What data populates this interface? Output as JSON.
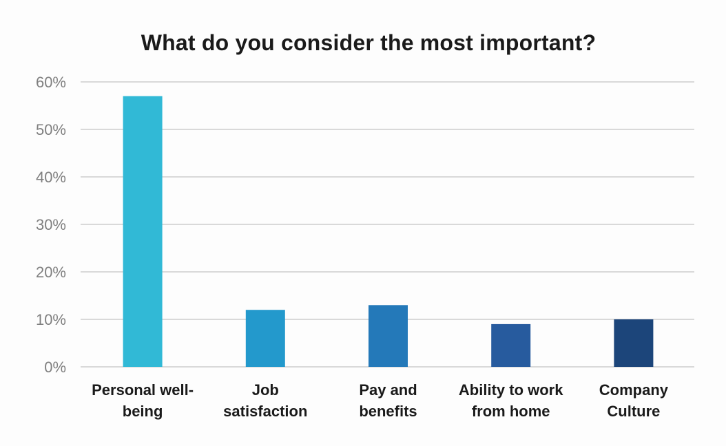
{
  "chart_data": {
    "type": "bar",
    "title": "What do you consider the most important?",
    "xlabel": "",
    "ylabel": "",
    "ylim": [
      0,
      60
    ],
    "y_ticks": [
      "0%",
      "10%",
      "20%",
      "30%",
      "40%",
      "50%",
      "60%"
    ],
    "y_tick_values": [
      0,
      10,
      20,
      30,
      40,
      50,
      60
    ],
    "grid": true,
    "legend": "none",
    "categories": [
      [
        "Personal well-",
        "being"
      ],
      [
        "Job",
        "satisfaction"
      ],
      [
        "Pay and",
        "benefits"
      ],
      [
        "Ability to work",
        "from home"
      ],
      [
        "Company",
        "Culture"
      ]
    ],
    "values": [
      57,
      12,
      13,
      9,
      10
    ],
    "bar_colors": [
      "#31b9d6",
      "#2399cc",
      "#2479b9",
      "#275b9e",
      "#1c457a"
    ],
    "gridline_color": "#d9d9d9"
  }
}
